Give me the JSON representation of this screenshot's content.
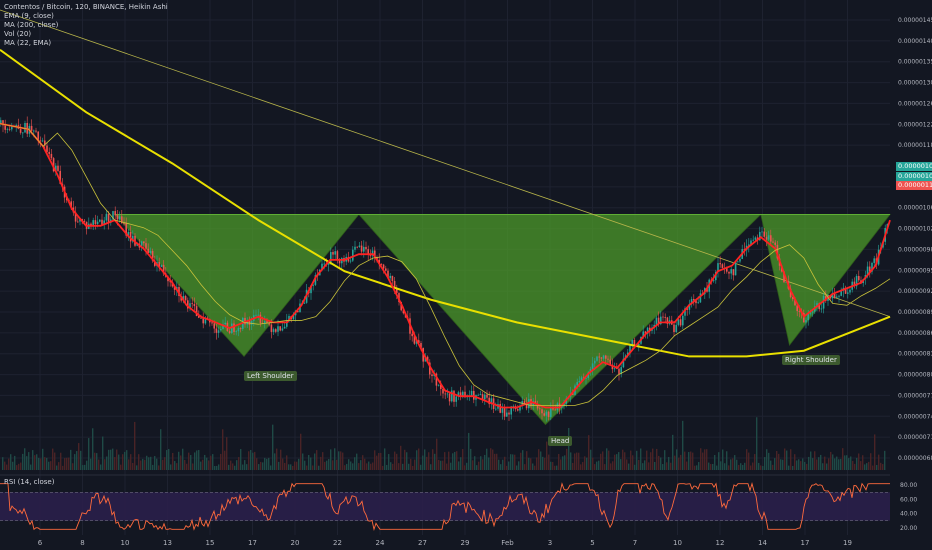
{
  "legend": {
    "title": "Contentos / Bitcoin, 120, BINANCE, Heikin Ashi",
    "ema": "EMA (9, close)",
    "ma": "MA (200, close)",
    "vol": "Vol (20)",
    "ma22": "MA (22, EMA)"
  },
  "rsi_title": "RSI (14, close)",
  "labels": {
    "left_shoulder": "Left Shoulder",
    "head": "Head",
    "right_shoulder": "Right Shoulder"
  },
  "badges": {
    "b1": "0.00000103",
    "b2": "0.00000105",
    "b3": "0.00000112"
  },
  "colors": {
    "background": "#131722",
    "pattern_fill": "#4c9a2a",
    "ema": "#ff2222",
    "ma200": "#e9e000",
    "up": "#26a69a",
    "down": "#ef5350",
    "rsi": "#ff6a3d",
    "rsi_band": "#2a1f4a"
  },
  "chart_data": {
    "type": "candlestick",
    "x_ticks": [
      "6",
      "8",
      "10",
      "13",
      "15",
      "17",
      "20",
      "22",
      "24",
      "27",
      "29",
      "Feb",
      "3",
      "5",
      "7",
      "10",
      "12",
      "14",
      "17",
      "19"
    ],
    "y_ticks": [
      "0.00000145",
      "0.00000140",
      "0.00000135",
      "0.00000130",
      "0.00000126",
      "0.00000122",
      "0.00000118",
      "0.00000114",
      "0.00000110",
      "0.00000106",
      "0.00000102",
      "0.00000098",
      "0.00000095",
      "0.00000092",
      "0.00000089",
      "0.00000086",
      "0.00000083",
      "0.00000080",
      "0.00000077",
      "0.00000074",
      "0.00000071",
      "0.00000068"
    ],
    "price_path": [
      [
        0,
        1.27
      ],
      [
        2,
        1.26
      ],
      [
        3,
        1.23
      ],
      [
        4,
        1.18
      ],
      [
        5,
        1.11
      ],
      [
        6,
        1.09
      ],
      [
        7,
        1.1
      ],
      [
        8,
        1.11
      ],
      [
        9,
        1.07
      ],
      [
        10,
        1.05
      ],
      [
        11,
        1.02
      ],
      [
        12,
        0.99
      ],
      [
        13,
        0.95
      ],
      [
        14,
        0.93
      ],
      [
        15,
        0.91
      ],
      [
        16,
        0.91
      ],
      [
        17,
        0.92
      ],
      [
        18,
        0.93
      ],
      [
        19,
        0.91
      ],
      [
        20,
        0.92
      ],
      [
        21,
        0.95
      ],
      [
        22,
        1.01
      ],
      [
        23,
        1.04
      ],
      [
        24,
        1.03
      ],
      [
        25,
        1.05
      ],
      [
        26,
        1.04
      ],
      [
        27,
        1.0
      ],
      [
        28,
        0.94
      ],
      [
        29,
        0.88
      ],
      [
        30,
        0.83
      ],
      [
        31,
        0.79
      ],
      [
        32,
        0.79
      ],
      [
        33,
        0.79
      ],
      [
        34,
        0.78
      ],
      [
        35,
        0.76
      ],
      [
        36,
        0.77
      ],
      [
        37,
        0.78
      ],
      [
        38,
        0.76
      ],
      [
        39,
        0.77
      ],
      [
        40,
        0.8
      ],
      [
        41,
        0.84
      ],
      [
        42,
        0.86
      ],
      [
        43,
        0.83
      ],
      [
        44,
        0.88
      ],
      [
        45,
        0.9
      ],
      [
        46,
        0.93
      ],
      [
        47,
        0.91
      ],
      [
        48,
        0.95
      ],
      [
        49,
        0.97
      ],
      [
        50,
        1.02
      ],
      [
        51,
        1.01
      ],
      [
        52,
        1.06
      ],
      [
        53,
        1.08
      ],
      [
        54,
        1.05
      ],
      [
        55,
        0.96
      ],
      [
        56,
        0.92
      ],
      [
        57,
        0.95
      ],
      [
        58,
        0.97
      ],
      [
        59,
        0.98
      ],
      [
        60,
        1.0
      ],
      [
        61,
        1.03
      ],
      [
        62,
        1.11
      ]
    ],
    "ema_path": [
      [
        0,
        1.27
      ],
      [
        2,
        1.26
      ],
      [
        3,
        1.23
      ],
      [
        4,
        1.18
      ],
      [
        5,
        1.12
      ],
      [
        6,
        1.09
      ],
      [
        7,
        1.09
      ],
      [
        8,
        1.1
      ],
      [
        9,
        1.07
      ],
      [
        10,
        1.05
      ],
      [
        11,
        1.02
      ],
      [
        12,
        0.99
      ],
      [
        13,
        0.95
      ],
      [
        14,
        0.93
      ],
      [
        15,
        0.92
      ],
      [
        16,
        0.91
      ],
      [
        17,
        0.92
      ],
      [
        18,
        0.93
      ],
      [
        19,
        0.92
      ],
      [
        20,
        0.92
      ],
      [
        21,
        0.95
      ],
      [
        22,
        1.0
      ],
      [
        23,
        1.03
      ],
      [
        24,
        1.03
      ],
      [
        25,
        1.04
      ],
      [
        26,
        1.04
      ],
      [
        27,
        1.0
      ],
      [
        28,
        0.95
      ],
      [
        29,
        0.89
      ],
      [
        30,
        0.84
      ],
      [
        31,
        0.8
      ],
      [
        32,
        0.79
      ],
      [
        33,
        0.79
      ],
      [
        34,
        0.78
      ],
      [
        35,
        0.77
      ],
      [
        36,
        0.77
      ],
      [
        37,
        0.78
      ],
      [
        38,
        0.77
      ],
      [
        39,
        0.77
      ],
      [
        40,
        0.8
      ],
      [
        41,
        0.83
      ],
      [
        42,
        0.85
      ],
      [
        43,
        0.84
      ],
      [
        44,
        0.87
      ],
      [
        45,
        0.9
      ],
      [
        46,
        0.92
      ],
      [
        47,
        0.92
      ],
      [
        48,
        0.95
      ],
      [
        49,
        0.97
      ],
      [
        50,
        1.01
      ],
      [
        51,
        1.02
      ],
      [
        52,
        1.05
      ],
      [
        53,
        1.07
      ],
      [
        54,
        1.05
      ],
      [
        55,
        0.98
      ],
      [
        56,
        0.93
      ],
      [
        57,
        0.95
      ],
      [
        58,
        0.97
      ],
      [
        59,
        0.98
      ],
      [
        60,
        0.99
      ],
      [
        61,
        1.02
      ],
      [
        62,
        1.1
      ]
    ],
    "ma200_path": [
      [
        0,
        1.4
      ],
      [
        6,
        1.29
      ],
      [
        12,
        1.2
      ],
      [
        18,
        1.1
      ],
      [
        24,
        1.01
      ],
      [
        30,
        0.96
      ],
      [
        36,
        0.92
      ],
      [
        42,
        0.89
      ],
      [
        48,
        0.86
      ],
      [
        52,
        0.86
      ],
      [
        56,
        0.87
      ],
      [
        60,
        0.91
      ],
      [
        62,
        0.93
      ]
    ],
    "trendline": [
      [
        0,
        1.47
      ],
      [
        62,
        0.93
      ]
    ],
    "pattern": {
      "neckline": 1.11,
      "left_shoulder": [
        [
          8,
          1.11
        ],
        [
          17,
          0.86
        ],
        [
          25,
          1.11
        ]
      ],
      "head": [
        [
          25,
          1.11
        ],
        [
          38,
          0.74
        ],
        [
          53,
          1.11
        ]
      ],
      "right_shoulder": [
        [
          53,
          1.11
        ],
        [
          55,
          0.88
        ],
        [
          62,
          1.11
        ]
      ]
    },
    "rsi": {
      "levels": [
        70,
        30
      ],
      "y_ticks": [
        "80.00",
        "60.00",
        "40.00",
        "20.00"
      ],
      "range": [
        10,
        90
      ]
    },
    "legend_position": "top-left"
  }
}
